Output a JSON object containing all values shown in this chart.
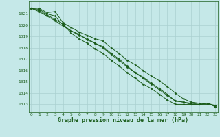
{
  "x": [
    0,
    1,
    2,
    3,
    4,
    5,
    6,
    7,
    8,
    9,
    10,
    11,
    12,
    13,
    14,
    15,
    16,
    17,
    18,
    19,
    20,
    21,
    22,
    23
  ],
  "series1": [
    1021.5,
    1021.5,
    1021.1,
    1021.2,
    1020.2,
    1019.8,
    1019.4,
    1019.1,
    1018.8,
    1018.6,
    1018.0,
    1017.5,
    1016.9,
    1016.5,
    1016.0,
    1015.5,
    1015.1,
    1014.6,
    1014.0,
    1013.5,
    1013.2,
    1013.1,
    1013.1,
    1012.8
  ],
  "series2": [
    1021.5,
    1021.4,
    1021.0,
    1020.8,
    1020.0,
    1019.5,
    1019.2,
    1018.7,
    1018.4,
    1018.0,
    1017.4,
    1016.9,
    1016.3,
    1015.8,
    1015.4,
    1014.9,
    1014.4,
    1013.9,
    1013.3,
    1013.2,
    1013.1,
    1013.0,
    1013.1,
    1012.9
  ],
  "series3": [
    1021.5,
    1021.2,
    1020.8,
    1020.4,
    1019.9,
    1019.5,
    1019.1,
    1018.8,
    1018.4,
    1018.1,
    1017.5,
    1017.0,
    1016.4,
    1015.8,
    1015.3,
    1014.8,
    1014.3,
    1013.8,
    1013.3,
    1013.2,
    1013.0,
    1013.0,
    1013.0,
    1012.9
  ],
  "series4": [
    1021.5,
    1021.3,
    1020.9,
    1020.5,
    1020.1,
    1019.3,
    1018.8,
    1018.4,
    1017.9,
    1017.5,
    1016.9,
    1016.4,
    1015.8,
    1015.3,
    1014.8,
    1014.4,
    1013.9,
    1013.4,
    1013.0,
    1013.0,
    1013.0,
    1013.0,
    1013.1,
    1012.8
  ],
  "bg_color": "#c5e8e8",
  "grid_color": "#aad0d0",
  "line_color": "#1a5c1a",
  "marker_color": "#1a5c1a",
  "text_color": "#1a5c1a",
  "xlabel": "Graphe pression niveau de la mer (hPa)",
  "ylim_min": 1012.3,
  "ylim_max": 1022.1,
  "xlim_min": -0.3,
  "xlim_max": 23.3,
  "yticks": [
    1013,
    1014,
    1015,
    1016,
    1017,
    1018,
    1019,
    1020,
    1021
  ],
  "xticks": [
    0,
    1,
    2,
    3,
    4,
    5,
    6,
    7,
    8,
    9,
    10,
    11,
    12,
    13,
    14,
    15,
    16,
    17,
    18,
    19,
    20,
    21,
    22,
    23
  ]
}
